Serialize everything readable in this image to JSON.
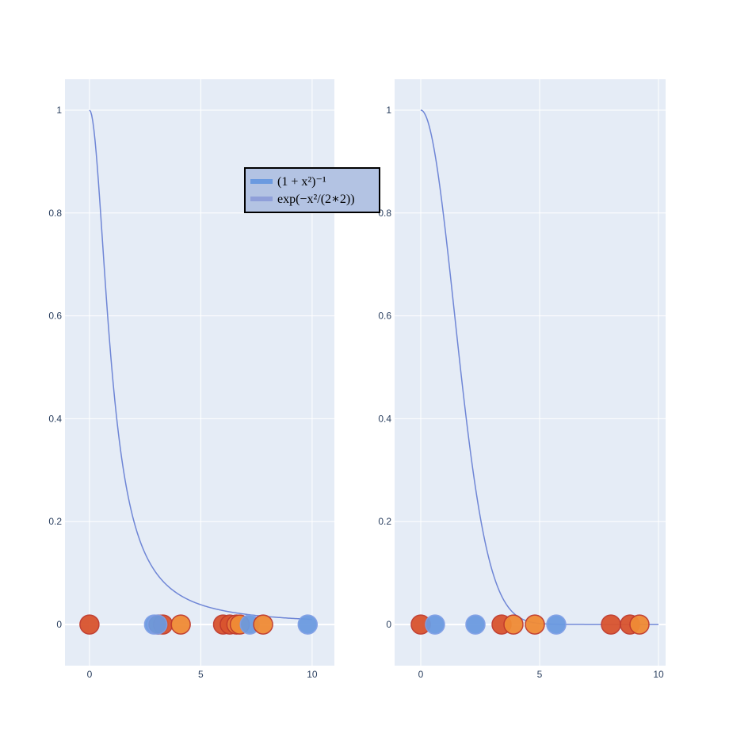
{
  "chart_data": [
    {
      "type": "scatter",
      "subplot": "left",
      "xlim": [
        -1.1,
        11.0
      ],
      "ylim": [
        -0.08,
        1.06
      ],
      "xticks": [
        0,
        5,
        10
      ],
      "yticks": [
        0,
        0.2,
        0.4,
        0.6,
        0.8,
        1
      ],
      "xtick_labels": [
        "0",
        "5",
        "10"
      ],
      "ytick_labels": [
        "0",
        "0.2",
        "0.4",
        "0.6",
        "0.8",
        "1"
      ],
      "grid": true,
      "curve": {
        "name": "(1 + x²)⁻¹",
        "function": "1/(1+x^2)",
        "x_range": [
          0,
          10
        ],
        "color": "#6f86d6"
      },
      "markers": [
        {
          "x": 0.0,
          "y": 0,
          "color": "#d9542e"
        },
        {
          "x": 2.9,
          "y": 0,
          "color": "#6b9ae0"
        },
        {
          "x": 3.1,
          "y": 0,
          "color": "#e87a3a"
        },
        {
          "x": 3.3,
          "y": 0,
          "color": "#d9542e"
        },
        {
          "x": 3.05,
          "y": 0,
          "color": "#6b9ae0"
        },
        {
          "x": 4.1,
          "y": 0,
          "color": "#f08b35"
        },
        {
          "x": 6.0,
          "y": 0,
          "color": "#d9542e"
        },
        {
          "x": 6.3,
          "y": 0,
          "color": "#d9542e"
        },
        {
          "x": 6.6,
          "y": 0,
          "color": "#e87a3a"
        },
        {
          "x": 6.75,
          "y": 0,
          "color": "#f08b35"
        },
        {
          "x": 7.2,
          "y": 0,
          "color": "#6b9ae0"
        },
        {
          "x": 7.8,
          "y": 0,
          "color": "#f08b35"
        },
        {
          "x": 9.8,
          "y": 0,
          "color": "#6b9ae0"
        }
      ]
    },
    {
      "type": "scatter",
      "subplot": "right",
      "xlim": [
        -1.1,
        10.3
      ],
      "ylim": [
        -0.08,
        1.06
      ],
      "xticks": [
        0,
        5,
        10
      ],
      "yticks": [
        0,
        0.2,
        0.4,
        0.6,
        0.8,
        1
      ],
      "xtick_labels": [
        "0",
        "5",
        "10"
      ],
      "ytick_labels": [
        "0",
        "0.2",
        "0.4",
        "0.6",
        "0.8",
        "1"
      ],
      "grid": true,
      "curve": {
        "name": "exp(−x²/(2∗2))",
        "function": "exp(-x^2/4)",
        "x_range": [
          0,
          10
        ],
        "color": "#6f86d6"
      },
      "markers": [
        {
          "x": 0.0,
          "y": 0,
          "color": "#d9542e"
        },
        {
          "x": 0.6,
          "y": 0,
          "color": "#6b9ae0"
        },
        {
          "x": 2.3,
          "y": 0,
          "color": "#6b9ae0"
        },
        {
          "x": 3.4,
          "y": 0,
          "color": "#d9542e"
        },
        {
          "x": 3.9,
          "y": 0,
          "color": "#f08b35"
        },
        {
          "x": 4.8,
          "y": 0,
          "color": "#f08b35"
        },
        {
          "x": 5.7,
          "y": 0,
          "color": "#6b9ae0"
        },
        {
          "x": 8.0,
          "y": 0,
          "color": "#d9542e"
        },
        {
          "x": 8.8,
          "y": 0,
          "color": "#d9542e"
        },
        {
          "x": 9.2,
          "y": 0,
          "color": "#f08b35"
        }
      ]
    }
  ],
  "legend": {
    "placement": "center-top",
    "entries": [
      {
        "label": "(1 + x²)⁻¹",
        "color": "#6b9ae0"
      },
      {
        "label": "exp(−x²/(2∗2))",
        "color": "#8f9fd9"
      }
    ]
  },
  "colors": {
    "plot_bg": "#e5ecf6",
    "grid": "#ffffff",
    "curve": "#6f86d6",
    "tick": "#2a3f5f"
  }
}
